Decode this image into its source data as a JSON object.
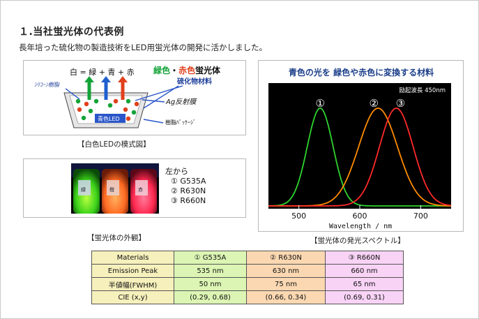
{
  "heading": "１.当社蛍光体の代表例",
  "intro": "長年培った硫化物の製造技術をLED用蛍光体の開発に活かしました。",
  "led_diagram": {
    "formula": "白 = 緑 + 青 + 赤",
    "phosphor_green": "緑色",
    "phosphor_dot": "・",
    "phosphor_red": "赤色",
    "phosphor_rest": "蛍光体",
    "sulfide_label": "硫化物材料",
    "silicone_label": "ｼﾘｺｰﾝ樹脂",
    "reflector_label": "Ag反射膜",
    "led_label": "青色LED",
    "package_label": "樹脂ﾊﾟｯｹｰｼﾞ",
    "caption": "【白色LEDの模式図】",
    "colors": {
      "green": "#11a336",
      "blue": "#1f5fcf",
      "red": "#e0401c",
      "led": "#2a55c9"
    }
  },
  "appearance": {
    "from_label": "左から",
    "items": [
      "① G535A",
      "② R630N",
      "③ R660N"
    ],
    "caption": "【蛍光体の外観】",
    "jar_labels": [
      "緑",
      "橙",
      "赤"
    ]
  },
  "spectrum": {
    "title": "青色の光を 緑色や赤色に変換する材料",
    "excitation": "励起波長 450nm",
    "caption": "【蛍光体の発光スペクトル】",
    "markers": [
      "①",
      "②",
      "③"
    ],
    "colors": {
      "G535A": "#2fd42f",
      "R630N": "#ff8c00",
      "R660N": "#ff2a2a"
    }
  },
  "chart_data": {
    "type": "line",
    "title": "",
    "xlabel": "Wavelength / nm",
    "ylabel": "",
    "xlim": [
      450,
      750
    ],
    "ylim": [
      0,
      1
    ],
    "x_ticks": [
      500,
      600,
      700
    ],
    "grid": false,
    "series": [
      {
        "name": "①",
        "peak": 535,
        "fwhm": 50,
        "color": "#2fd42f"
      },
      {
        "name": "②",
        "peak": 630,
        "fwhm": 75,
        "color": "#ff8c00"
      },
      {
        "name": "③",
        "peak": 660,
        "fwhm": 65,
        "color": "#ff2a2a"
      }
    ]
  },
  "table": {
    "headers": [
      "Materials",
      "① G535A",
      "② R630N",
      "③ R660N"
    ],
    "rows": [
      [
        "Emission Peak",
        "535 nm",
        "630 nm",
        "660 nm"
      ],
      [
        "半値幅(FWHM)",
        "50 nm",
        "75 nm",
        "65 nm"
      ],
      [
        "CIE (x,y)",
        "(0.29, 0.68)",
        "(0.66, 0.34)",
        "(0.69, 0.31)"
      ]
    ]
  }
}
